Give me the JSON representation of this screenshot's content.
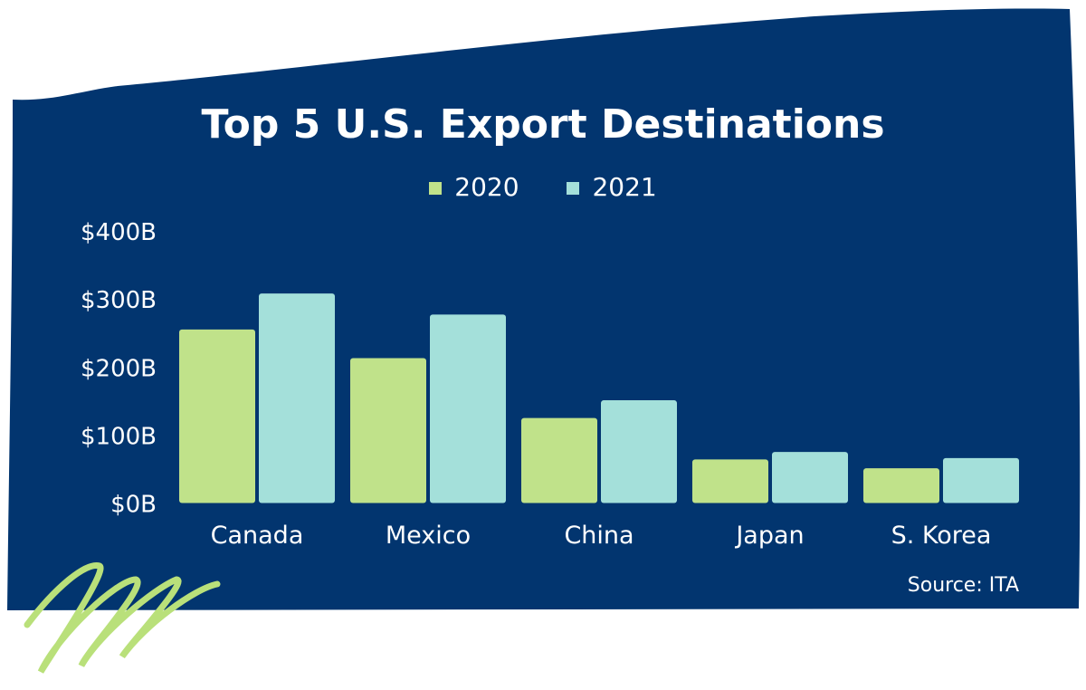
{
  "colors": {
    "background": "#02356f",
    "series_2020": "#c0e28a",
    "series_2021": "#a4e0da",
    "text": "#ffffff",
    "squiggle": "#b9e07a"
  },
  "source": "Source: ITA",
  "chart_data": {
    "type": "bar",
    "title": "Top 5 U.S. Export Destinations",
    "categories": [
      "Canada",
      "Mexico",
      "China",
      "Japan",
      "S. Korea"
    ],
    "series": [
      {
        "name": "2020",
        "values": [
          255,
          213,
          125,
          64,
          51
        ]
      },
      {
        "name": "2021",
        "values": [
          308,
          277,
          151,
          75,
          66
        ]
      }
    ],
    "yticks": [
      "$0B",
      "$100B",
      "$200B",
      "$300B",
      "$400B"
    ],
    "ytick_values": [
      0,
      100,
      200,
      300,
      400
    ],
    "ylim": [
      0,
      400
    ],
    "xlabel": "",
    "ylabel": "",
    "grid": false,
    "legend": "top-center"
  }
}
